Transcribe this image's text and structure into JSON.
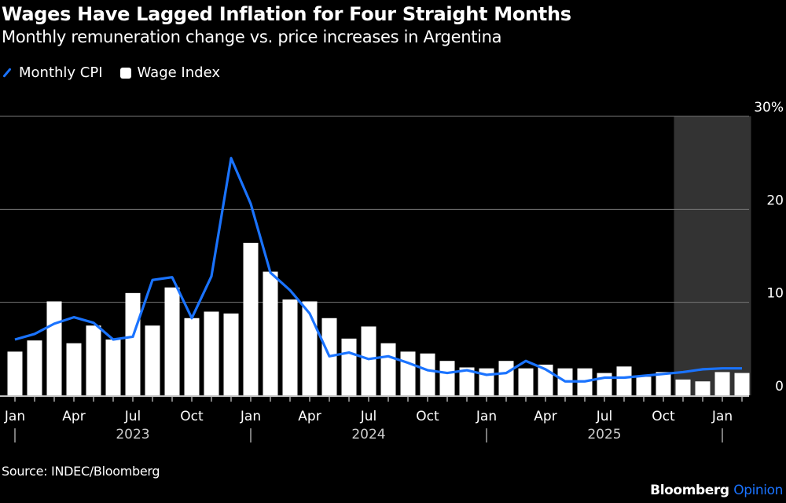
{
  "title": "Wages Have Lagged Inflation for Four Straight Months",
  "subtitle": "Monthly remuneration change vs. price increases in Argentina",
  "source": "Source: INDEC/Bloomberg",
  "brand": {
    "name": "Bloomberg",
    "suffix": "Opinion",
    "suffix_color": "#1a73ff"
  },
  "chart_data": {
    "type": "bar+line",
    "title": "Wages Have Lagged Inflation for Four Straight Months",
    "subtitle": "Monthly remuneration change vs. price increases in Argentina",
    "legend": {
      "placement": "top-left",
      "entries": [
        "Monthly CPI",
        "Wage Index"
      ]
    },
    "ylim": [
      0,
      30
    ],
    "yticks": [
      0,
      10,
      20,
      30
    ],
    "ytick_labels": [
      "0",
      "10",
      "20",
      "30%"
    ],
    "grid": true,
    "x": [
      "2023-01",
      "2023-02",
      "2023-03",
      "2023-04",
      "2023-05",
      "2023-06",
      "2023-07",
      "2023-08",
      "2023-09",
      "2023-10",
      "2023-11",
      "2023-12",
      "2024-01",
      "2024-02",
      "2024-03",
      "2024-04",
      "2024-05",
      "2024-06",
      "2024-07",
      "2024-08",
      "2024-09",
      "2024-10",
      "2024-11",
      "2024-12",
      "2025-01",
      "2025-02",
      "2025-03",
      "2025-04",
      "2025-05",
      "2025-06",
      "2025-07",
      "2025-08",
      "2025-09",
      "2025-10",
      "2025-11",
      "2025-12",
      "2026-01",
      "2026-02"
    ],
    "month_labels": [
      {
        "x": "2023-01",
        "label": "Jan"
      },
      {
        "x": "2023-04",
        "label": "Apr"
      },
      {
        "x": "2023-07",
        "label": "Jul"
      },
      {
        "x": "2023-10",
        "label": "Oct"
      },
      {
        "x": "2024-01",
        "label": "Jan"
      },
      {
        "x": "2024-04",
        "label": "Apr"
      },
      {
        "x": "2024-07",
        "label": "Jul"
      },
      {
        "x": "2024-10",
        "label": "Oct"
      },
      {
        "x": "2025-01",
        "label": "Jan"
      },
      {
        "x": "2025-04",
        "label": "Apr"
      },
      {
        "x": "2025-07",
        "label": "Jul"
      },
      {
        "x": "2025-10",
        "label": "Oct"
      },
      {
        "x": "2026-01",
        "label": "Jan"
      }
    ],
    "year_labels": [
      {
        "x": "2023-07",
        "label": "2023"
      },
      {
        "x": "2024-07",
        "label": "2024"
      },
      {
        "x": "2025-07",
        "label": "2025"
      }
    ],
    "year_separators": [
      "2023-01",
      "2024-01",
      "2025-01",
      "2026-01"
    ],
    "shaded_region": {
      "from": "2025-11",
      "to": "2026-02",
      "color": "#333333"
    },
    "series": [
      {
        "name": "Wage Index",
        "type": "bar",
        "color": "#ffffff",
        "values": [
          4.7,
          5.9,
          10.1,
          5.6,
          7.5,
          6.0,
          11.0,
          7.5,
          11.6,
          8.3,
          9.0,
          8.8,
          16.4,
          13.3,
          10.3,
          10.1,
          8.3,
          6.1,
          7.4,
          5.6,
          4.7,
          4.5,
          3.7,
          3.0,
          2.9,
          3.7,
          2.9,
          3.3,
          2.9,
          2.9,
          2.4,
          3.1,
          2.0,
          2.5,
          1.7,
          1.5,
          2.5,
          2.4
        ]
      },
      {
        "name": "Monthly CPI",
        "type": "line",
        "color": "#1a73ff",
        "values": [
          6.0,
          6.6,
          7.7,
          8.4,
          7.8,
          6.0,
          6.3,
          12.4,
          12.7,
          8.3,
          12.8,
          25.5,
          20.6,
          13.2,
          11.3,
          8.8,
          4.2,
          4.6,
          3.9,
          4.2,
          3.5,
          2.7,
          2.4,
          2.7,
          2.2,
          2.4,
          3.7,
          2.8,
          1.5,
          1.5,
          1.9,
          1.9,
          2.1,
          2.3,
          2.5,
          2.8,
          2.9,
          2.9
        ]
      }
    ]
  }
}
